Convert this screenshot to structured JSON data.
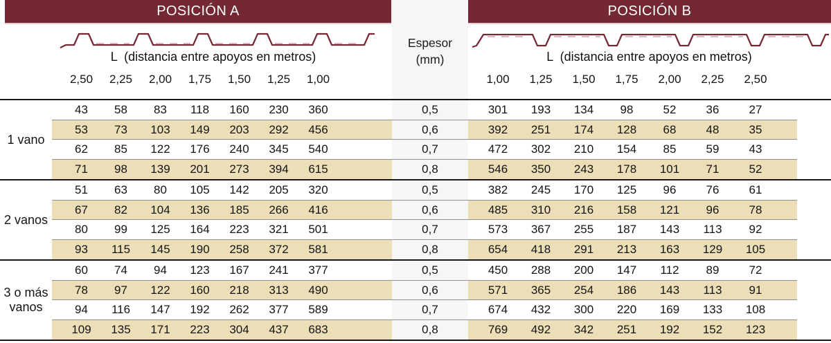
{
  "position_a": {
    "title": "POSICIÓN A",
    "l_label": "L  (distancia entre apoyos en metros)",
    "spans": [
      "2,50",
      "2,25",
      "2,00",
      "1,75",
      "1,50",
      "1,25",
      "1,00"
    ]
  },
  "position_b": {
    "title": "POSICIÓN B",
    "l_label": "L  (distancia entre apoyos en metros)",
    "spans": [
      "1,00",
      "1,25",
      "1,50",
      "1,75",
      "2,00",
      "2,25",
      "2,50"
    ]
  },
  "espesor_header": {
    "line1": "Espesor",
    "line2": "(mm)"
  },
  "groups": [
    {
      "label": "1 vano",
      "rows": [
        {
          "espesor": "0,5",
          "a": [
            "43",
            "58",
            "83",
            "118",
            "160",
            "230",
            "360"
          ],
          "b": [
            "301",
            "193",
            "134",
            "98",
            "52",
            "36",
            "27"
          ]
        },
        {
          "espesor": "0,6",
          "a": [
            "53",
            "73",
            "103",
            "149",
            "203",
            "292",
            "456"
          ],
          "b": [
            "392",
            "251",
            "174",
            "128",
            "68",
            "48",
            "35"
          ]
        },
        {
          "espesor": "0,7",
          "a": [
            "62",
            "85",
            "122",
            "176",
            "240",
            "345",
            "540"
          ],
          "b": [
            "472",
            "302",
            "210",
            "154",
            "85",
            "59",
            "43"
          ]
        },
        {
          "espesor": "0,8",
          "a": [
            "71",
            "98",
            "139",
            "201",
            "273",
            "394",
            "615"
          ],
          "b": [
            "546",
            "350",
            "243",
            "178",
            "101",
            "71",
            "52"
          ]
        }
      ]
    },
    {
      "label": "2 vanos",
      "rows": [
        {
          "espesor": "0,5",
          "a": [
            "51",
            "63",
            "80",
            "105",
            "142",
            "205",
            "320"
          ],
          "b": [
            "382",
            "245",
            "170",
            "125",
            "96",
            "76",
            "61"
          ]
        },
        {
          "espesor": "0,6",
          "a": [
            "67",
            "82",
            "104",
            "136",
            "185",
            "266",
            "416"
          ],
          "b": [
            "485",
            "310",
            "216",
            "158",
            "121",
            "96",
            "78"
          ]
        },
        {
          "espesor": "0,7",
          "a": [
            "80",
            "99",
            "125",
            "164",
            "223",
            "321",
            "501"
          ],
          "b": [
            "573",
            "367",
            "255",
            "187",
            "143",
            "113",
            "92"
          ]
        },
        {
          "espesor": "0,8",
          "a": [
            "93",
            "115",
            "145",
            "190",
            "258",
            "372",
            "581"
          ],
          "b": [
            "654",
            "418",
            "291",
            "213",
            "163",
            "129",
            "105"
          ]
        }
      ]
    },
    {
      "label": "3 o más vanos",
      "rows": [
        {
          "espesor": "0,5",
          "a": [
            "60",
            "74",
            "94",
            "123",
            "167",
            "241",
            "377"
          ],
          "b": [
            "450",
            "288",
            "200",
            "147",
            "112",
            "89",
            "72"
          ]
        },
        {
          "espesor": "0,6",
          "a": [
            "78",
            "97",
            "122",
            "160",
            "218",
            "313",
            "490"
          ],
          "b": [
            "571",
            "365",
            "254",
            "186",
            "143",
            "113",
            "91"
          ]
        },
        {
          "espesor": "0,7",
          "a": [
            "94",
            "116",
            "147",
            "192",
            "262",
            "377",
            "589"
          ],
          "b": [
            "674",
            "432",
            "300",
            "220",
            "169",
            "133",
            "108"
          ]
        },
        {
          "espesor": "0,8",
          "a": [
            "109",
            "135",
            "171",
            "223",
            "304",
            "437",
            "683"
          ],
          "b": [
            "769",
            "492",
            "342",
            "251",
            "192",
            "152",
            "123"
          ]
        }
      ]
    }
  ],
  "colors": {
    "maroon": "#732833",
    "bar_underline": "#e8cbd0",
    "row_band": "#ecdeb6",
    "gray_column": "#f6f6f6",
    "divider": "#8f8f8f",
    "heavy_line": "#171717",
    "profile_stroke": "#732833",
    "profile_dash": "#dcb6bc"
  }
}
